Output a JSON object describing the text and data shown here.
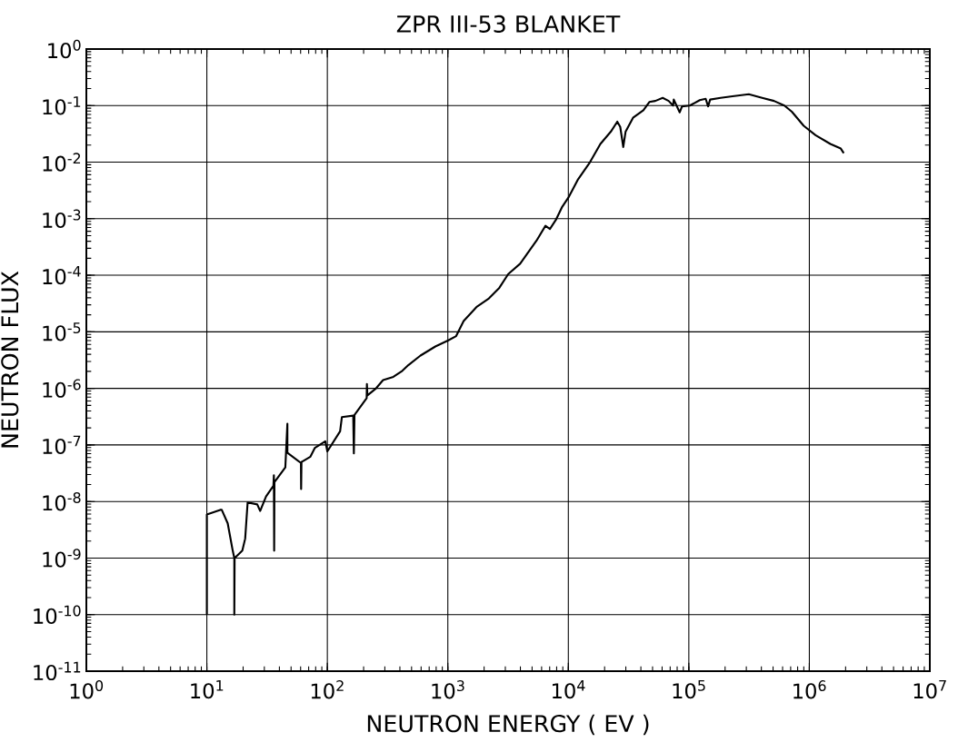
{
  "chart_data": {
    "type": "line",
    "title": "ZPR III-53  BLANKET",
    "xlabel": "NEUTRON  ENERGY  ( EV )",
    "ylabel": "NEUTRON  FLUX",
    "log": "xy",
    "grid": true,
    "marker": "none",
    "line_style": "solid",
    "xlim": [
      1,
      10000000
    ],
    "ylim": [
      1e-11,
      1
    ],
    "xticks": [
      {
        "value": 1,
        "label": "10$^{0}$"
      },
      {
        "value": 10,
        "label": "10$^{1}$"
      },
      {
        "value": 100,
        "label": "10$^{2}$"
      },
      {
        "value": 1000,
        "label": "10$^{3}$"
      },
      {
        "value": 10000,
        "label": "10$^{4}$"
      },
      {
        "value": 100000,
        "label": "10$^{5}$"
      },
      {
        "value": 1000000,
        "label": "10$^{6}$"
      },
      {
        "value": 10000000,
        "label": "10$^{7}$"
      }
    ],
    "yticks": [
      {
        "value": 1e-11,
        "label": "10$^{-11}$"
      },
      {
        "value": 1e-10,
        "label": "10$^{-10}$"
      },
      {
        "value": 1e-09,
        "label": "10$^{-9}$"
      },
      {
        "value": 1e-08,
        "label": "10$^{-8}$"
      },
      {
        "value": 1e-07,
        "label": "10$^{-7}$"
      },
      {
        "value": 1e-06,
        "label": "10$^{-6}$"
      },
      {
        "value": 1e-05,
        "label": "10$^{-5}$"
      },
      {
        "value": 0.0001,
        "label": "10$^{-4}$"
      },
      {
        "value": 0.001,
        "label": "10$^{-3}$"
      },
      {
        "value": 0.01,
        "label": "10$^{-2}$"
      },
      {
        "value": 0.1,
        "label": "10$^{-1}$"
      },
      {
        "value": 1,
        "label": "10$^{0}$"
      }
    ],
    "series": [
      {
        "color": "#000000",
        "x": [
          10,
          10,
          12.9,
          13.3,
          14.9,
          16.4,
          16.9,
          16.9,
          17.0,
          19.7,
          20.8,
          21.8,
          26.2,
          27.7,
          31.0,
          35.7,
          36.0,
          36.2,
          36.4,
          44.8,
          46.6,
          46.6,
          47.0,
          60.4,
          60.6,
          61.0,
          63.0,
          72.4,
          78.9,
          96.2,
          100,
          127.6,
          132,
          164,
          166,
          168,
          212,
          213,
          215,
          251,
          290,
          353,
          419,
          472,
          593,
          788,
          1000,
          1172,
          1352,
          1746,
          2193,
          2675,
          3172,
          3981,
          5445,
          6460,
          7034,
          7876,
          8830,
          10000,
          12060,
          15130,
          18450,
          22500,
          25480,
          26970,
          28560,
          29850,
          34420,
          41980,
          47020,
          52700,
          60700,
          68000,
          74000,
          75000,
          84000,
          87800,
          102000,
          123300,
          138000,
          144500,
          150300,
          183500,
          230300,
          314600,
          405700,
          509000,
          621000,
          716000,
          898000,
          1127000,
          1496000,
          1824000,
          1931000
        ],
        "values": [
          1e-10,
          5.9e-09,
          7.1e-09,
          7.1e-09,
          4.1e-09,
          1.35e-09,
          1e-09,
          1e-10,
          1e-09,
          1.35e-09,
          2.2e-09,
          9.6e-09,
          8.9e-09,
          6.8e-09,
          1.23e-08,
          1.9e-08,
          2.9e-08,
          1.35e-09,
          2.2e-08,
          4e-08,
          2.37e-07,
          7.4e-08,
          7.2e-08,
          4.8e-08,
          1.66e-08,
          5e-08,
          5.2e-08,
          6.2e-08,
          8.9e-08,
          1.16e-07,
          7.7e-08,
          1.74e-07,
          3.1e-07,
          3.3e-07,
          7.1e-08,
          3.4e-07,
          6.7e-07,
          1.2e-06,
          7.5e-07,
          9.8e-07,
          1.4e-06,
          1.6e-06,
          2.04e-06,
          2.6e-06,
          3.8e-06,
          5.5e-06,
          7e-06,
          8.4e-06,
          1.55e-05,
          2.8e-05,
          3.9e-05,
          6e-05,
          0.000105,
          0.00016,
          0.00041,
          0.00075,
          0.00066,
          0.00095,
          0.00158,
          0.00235,
          0.005,
          0.01,
          0.021,
          0.0345,
          0.052,
          0.042,
          0.0185,
          0.0345,
          0.061,
          0.083,
          0.116,
          0.121,
          0.137,
          0.121,
          0.1,
          0.128,
          0.076,
          0.097,
          0.1,
          0.125,
          0.132,
          0.097,
          0.128,
          0.137,
          0.146,
          0.159,
          0.137,
          0.121,
          0.1,
          0.078,
          0.044,
          0.03,
          0.021,
          0.0174,
          0.0144
        ]
      }
    ]
  }
}
